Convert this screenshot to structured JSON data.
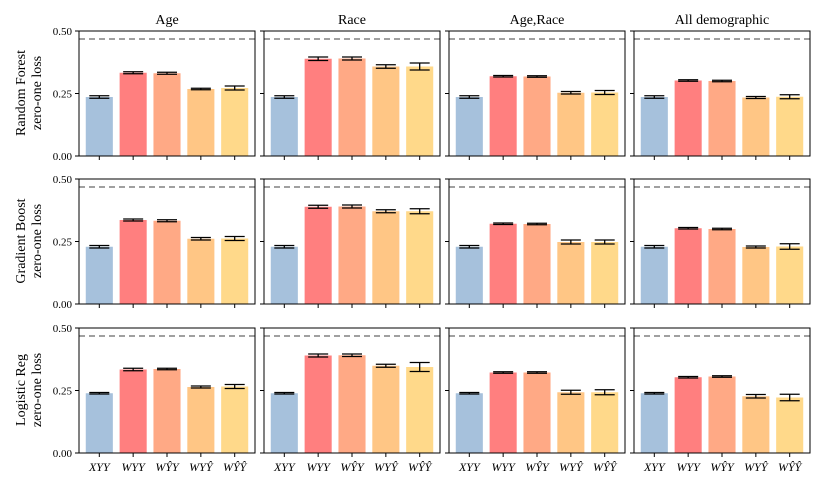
{
  "chart_data": {
    "type": "bar",
    "columns": [
      "Age",
      "Race",
      "Age,Race",
      "All demographic"
    ],
    "rows": [
      {
        "line1": "Random Forest",
        "line2": "zero-one loss"
      },
      {
        "line1": "Gradient Boost",
        "line2": "zero-one loss"
      },
      {
        "line1": "Logistic Reg",
        "line2": "zero-one loss"
      }
    ],
    "categories": [
      "XYY",
      "WYY",
      "WŶY",
      "WYŶ",
      "WŶŶ"
    ],
    "ylim": [
      0,
      0.5
    ],
    "yticks": [
      "0.00",
      "0.25",
      "0.50"
    ],
    "reference_line": 0.468,
    "colors": [
      "#a6c1dc",
      "#ff7f7f",
      "#ffa985",
      "#ffc685",
      "#ffd98a"
    ],
    "panels": [
      [
        {
          "values": [
            0.236,
            0.333,
            0.331,
            0.268,
            0.272
          ],
          "errors": [
            0.005,
            0.004,
            0.004,
            0.003,
            0.008
          ]
        },
        {
          "values": [
            0.236,
            0.389,
            0.39,
            0.358,
            0.358
          ],
          "errors": [
            0.005,
            0.007,
            0.006,
            0.007,
            0.014
          ]
        },
        {
          "values": [
            0.236,
            0.319,
            0.318,
            0.253,
            0.254
          ],
          "errors": [
            0.005,
            0.003,
            0.003,
            0.005,
            0.008
          ]
        },
        {
          "values": [
            0.236,
            0.302,
            0.3,
            0.234,
            0.237
          ],
          "errors": [
            0.005,
            0.003,
            0.003,
            0.004,
            0.008
          ]
        }
      ],
      [
        {
          "values": [
            0.229,
            0.336,
            0.333,
            0.261,
            0.262
          ],
          "errors": [
            0.005,
            0.004,
            0.004,
            0.005,
            0.008
          ]
        },
        {
          "values": [
            0.229,
            0.389,
            0.39,
            0.371,
            0.371
          ],
          "errors": [
            0.005,
            0.006,
            0.006,
            0.006,
            0.01
          ]
        },
        {
          "values": [
            0.229,
            0.321,
            0.32,
            0.248,
            0.248
          ],
          "errors": [
            0.005,
            0.003,
            0.003,
            0.008,
            0.008
          ]
        },
        {
          "values": [
            0.229,
            0.303,
            0.3,
            0.228,
            0.23
          ],
          "errors": [
            0.005,
            0.003,
            0.003,
            0.004,
            0.011
          ]
        }
      ],
      [
        {
          "values": [
            0.239,
            0.334,
            0.336,
            0.264,
            0.266
          ],
          "errors": [
            0.003,
            0.005,
            0.003,
            0.004,
            0.008
          ]
        },
        {
          "values": [
            0.239,
            0.39,
            0.391,
            0.349,
            0.344
          ],
          "errors": [
            0.003,
            0.006,
            0.005,
            0.006,
            0.018
          ]
        },
        {
          "values": [
            0.239,
            0.322,
            0.322,
            0.243,
            0.243
          ],
          "errors": [
            0.003,
            0.003,
            0.003,
            0.008,
            0.01
          ]
        },
        {
          "values": [
            0.239,
            0.303,
            0.306,
            0.227,
            0.222
          ],
          "errors": [
            0.003,
            0.003,
            0.003,
            0.007,
            0.013
          ]
        }
      ]
    ]
  }
}
